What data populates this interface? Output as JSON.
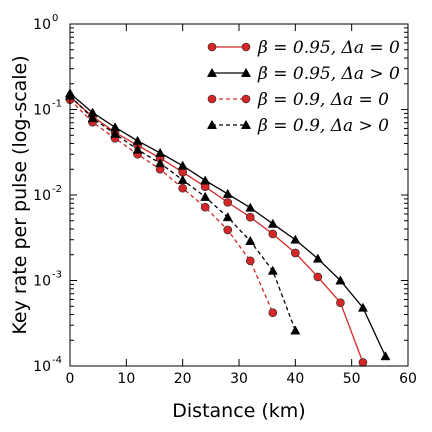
{
  "chart_data": {
    "type": "line",
    "xlabel": "Distance (km)",
    "ylabel": "Key rate per pulse (log-scale)",
    "xlim": [
      0,
      60
    ],
    "ylim": [
      0.0001,
      1
    ],
    "y_scale": "log",
    "x_ticks": [
      "0",
      "10",
      "20",
      "30",
      "40",
      "50",
      "60"
    ],
    "y_tick_mantissa": [
      "10",
      "10",
      "10",
      "10",
      "10"
    ],
    "y_tick_exponent": [
      "-4",
      "-3",
      "-2",
      "-1",
      "0"
    ],
    "grid": false,
    "legend_position": "top-right",
    "series": [
      {
        "name": "β = 0.95, Δa = 0",
        "color": "#d62728",
        "line_style": "solid",
        "marker": "circle",
        "x": [
          0,
          4,
          8,
          12,
          16,
          20,
          24,
          28,
          32,
          36,
          40,
          44,
          48,
          52
        ],
        "y": [
          0.14,
          0.083,
          0.054,
          0.038,
          0.027,
          0.0185,
          0.0125,
          0.0082,
          0.0055,
          0.0035,
          0.0021,
          0.0011,
          0.00055,
          0.00011
        ]
      },
      {
        "name": "β = 0.95, Δa > 0",
        "color": "#000000",
        "line_style": "solid",
        "marker": "triangle",
        "x": [
          0,
          4,
          8,
          12,
          16,
          20,
          24,
          28,
          32,
          36,
          40,
          44,
          48,
          52,
          56
        ],
        "y": [
          0.155,
          0.092,
          0.062,
          0.043,
          0.031,
          0.022,
          0.0148,
          0.0103,
          0.0071,
          0.0046,
          0.003,
          0.0018,
          0.001,
          0.00048,
          0.00013
        ]
      },
      {
        "name": "β = 0.9, Δa = 0",
        "color": "#d62728",
        "line_style": "dashed",
        "marker": "circle",
        "x": [
          0,
          4,
          8,
          12,
          16,
          20,
          24,
          28,
          32,
          36
        ],
        "y": [
          0.13,
          0.071,
          0.046,
          0.03,
          0.02,
          0.012,
          0.0072,
          0.0039,
          0.0017,
          0.00042
        ]
      },
      {
        "name": "β = 0.9, Δa > 0",
        "color": "#000000",
        "line_style": "dashed",
        "marker": "triangle",
        "x": [
          0,
          4,
          8,
          12,
          16,
          20,
          24,
          28,
          32,
          36,
          40
        ],
        "y": [
          0.145,
          0.079,
          0.052,
          0.034,
          0.0235,
          0.015,
          0.0095,
          0.0055,
          0.0029,
          0.0013,
          0.00026
        ]
      }
    ]
  }
}
